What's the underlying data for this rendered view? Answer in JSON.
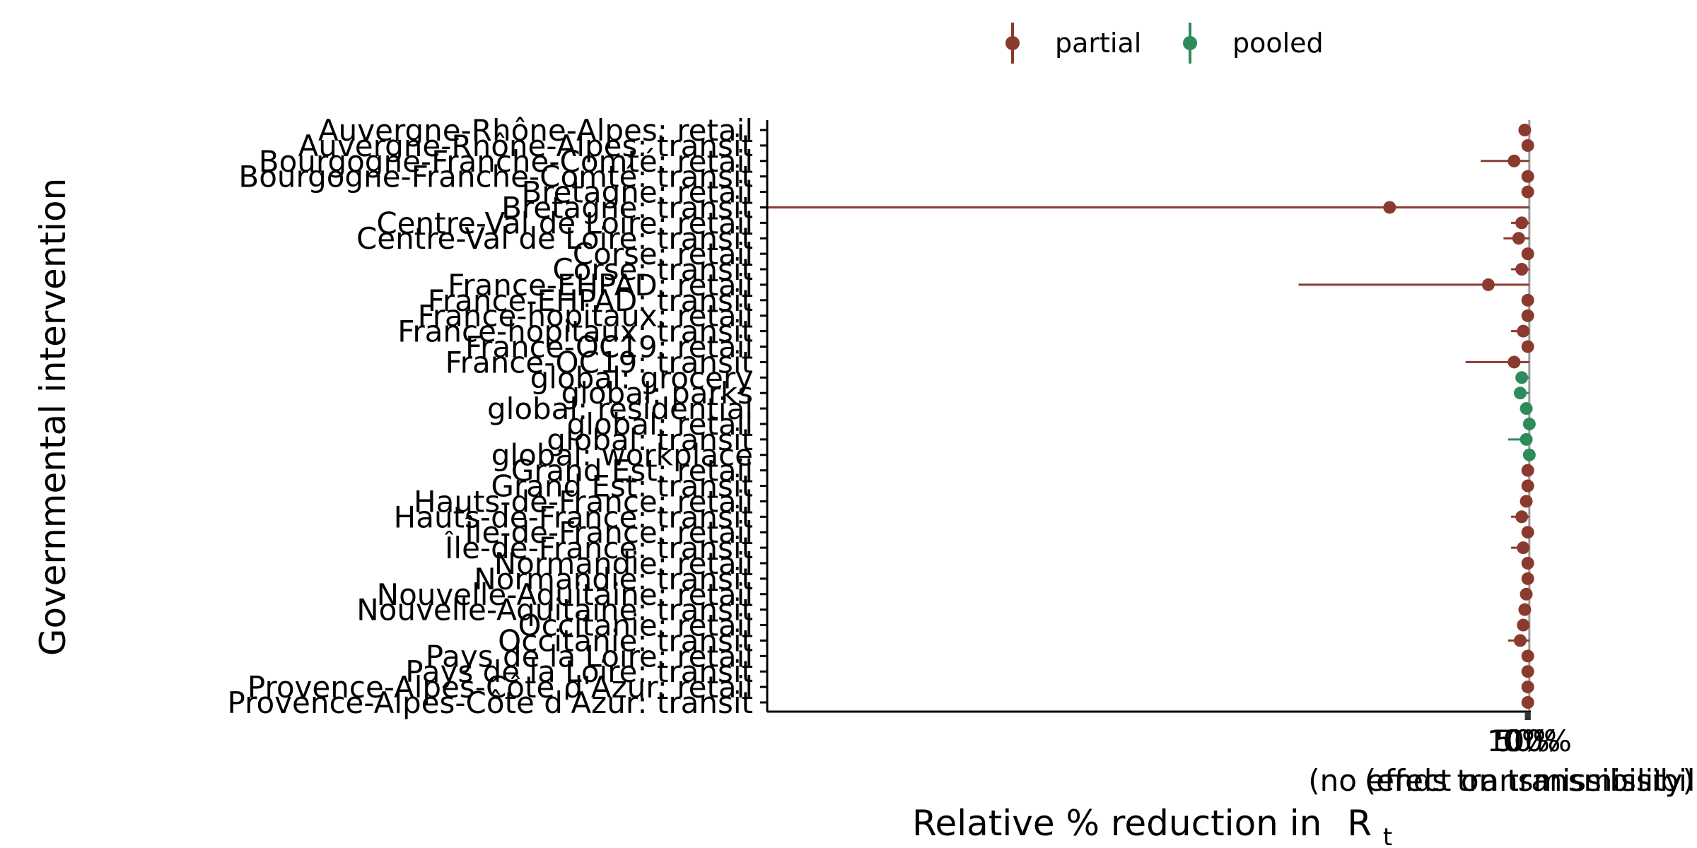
{
  "chart_data": {
    "type": "forest",
    "ylabel": "Governmental intervention",
    "xlabel": "Relative % reduction in",
    "xlabel_symbol": "R",
    "xlabel_subscript": "t",
    "xlim": [
      -500,
      3
    ],
    "x_ticks": [
      {
        "value": 0,
        "label": "0%"
      },
      {
        "value": 1,
        "label": "50%"
      },
      {
        "value": 2,
        "label": "100%"
      }
    ],
    "x_tick_notes": [
      {
        "value": 0,
        "label": "(no effect on transmissibility)"
      },
      {
        "value": 2,
        "label": "(ends transmissibility)"
      }
    ],
    "legend": {
      "placement": "top-center",
      "entries": [
        {
          "name": "partial",
          "color": "#8b3a2f"
        },
        {
          "name": "pooled",
          "color": "#2e8b5a"
        }
      ]
    },
    "reference_line": {
      "value": 2,
      "color": "#9a9a9a"
    },
    "series": [
      {
        "name": "partial",
        "color": "#8b3a2f"
      },
      {
        "name": "pooled",
        "color": "#2e8b5a"
      }
    ],
    "rows": [
      {
        "label": "Auvergne-Rhône-Alpes: retail",
        "series": "partial",
        "estimate": -1,
        "low": -4,
        "high": 2
      },
      {
        "label": "Auvergne-Rhône-Alpes: transit",
        "series": "partial",
        "estimate": 1,
        "low": -1,
        "high": 2
      },
      {
        "label": "Bourgogne-Franche-Comté: retail",
        "series": "partial",
        "estimate": -8,
        "low": -30,
        "high": 2
      },
      {
        "label": "Bourgogne-Franche-Comté: transit",
        "series": "partial",
        "estimate": 1,
        "low": -1,
        "high": 2
      },
      {
        "label": "Bretagne: retail",
        "series": "partial",
        "estimate": 1,
        "low": -1,
        "high": 2
      },
      {
        "label": "Bretagne: transit",
        "series": "partial",
        "estimate": -90,
        "low": -500,
        "high": 2
      },
      {
        "label": "Centre-Val de Loire: retail",
        "series": "partial",
        "estimate": -3,
        "low": -10,
        "high": 2
      },
      {
        "label": "Centre-Val de Loire: transit",
        "series": "partial",
        "estimate": -5,
        "low": -15,
        "high": 2
      },
      {
        "label": "Corse: retail",
        "series": "partial",
        "estimate": 1,
        "low": -1,
        "high": 2
      },
      {
        "label": "Corse: transit",
        "series": "partial",
        "estimate": -3,
        "low": -10,
        "high": 2
      },
      {
        "label": "France-EHPAD: retail",
        "series": "partial",
        "estimate": -25,
        "low": -150,
        "high": 2
      },
      {
        "label": "France-EHPAD: transit",
        "series": "partial",
        "estimate": 1,
        "low": -1,
        "high": 2
      },
      {
        "label": "France-hopitaux: retail",
        "series": "partial",
        "estimate": 1,
        "low": -1,
        "high": 2
      },
      {
        "label": "France-hopitaux: transit",
        "series": "partial",
        "estimate": -2,
        "low": -10,
        "high": 2
      },
      {
        "label": "France-OC19: retail",
        "series": "partial",
        "estimate": 1,
        "low": -1,
        "high": 2
      },
      {
        "label": "France-OC19: transit",
        "series": "partial",
        "estimate": -8,
        "low": -40,
        "high": 2
      },
      {
        "label": "global: grocery",
        "series": "pooled",
        "estimate": -3,
        "low": -6,
        "high": 2
      },
      {
        "label": "global: parks",
        "series": "pooled",
        "estimate": -4,
        "low": -8,
        "high": 2
      },
      {
        "label": "global: residential",
        "series": "pooled",
        "estimate": 0,
        "low": -2,
        "high": 2
      },
      {
        "label": "global: retail",
        "series": "pooled",
        "estimate": 2,
        "low": 1,
        "high": 3
      },
      {
        "label": "global: transit",
        "series": "pooled",
        "estimate": 0,
        "low": -12,
        "high": 2
      },
      {
        "label": "global: workplace",
        "series": "pooled",
        "estimate": 2,
        "low": 1,
        "high": 3
      },
      {
        "label": "Grand Est: retail",
        "series": "partial",
        "estimate": 1,
        "low": -1,
        "high": 2
      },
      {
        "label": "Grand Est: transit",
        "series": "partial",
        "estimate": 1,
        "low": -1,
        "high": 2
      },
      {
        "label": "Hauts-de-France: retail",
        "series": "partial",
        "estimate": 0,
        "low": -3,
        "high": 2
      },
      {
        "label": "Hauts-de-France: transit",
        "series": "partial",
        "estimate": -3,
        "low": -10,
        "high": 2
      },
      {
        "label": "Île-de-France: retail",
        "series": "partial",
        "estimate": 1,
        "low": -1,
        "high": 2
      },
      {
        "label": "Île-de-France: transit",
        "series": "partial",
        "estimate": -2,
        "low": -10,
        "high": 2
      },
      {
        "label": "Normandie: retail",
        "series": "partial",
        "estimate": 1,
        "low": -1,
        "high": 2
      },
      {
        "label": "Normandie: transit",
        "series": "partial",
        "estimate": 1,
        "low": -1,
        "high": 2
      },
      {
        "label": "Nouvelle-Aquitaine: retail",
        "series": "partial",
        "estimate": 0,
        "low": -2,
        "high": 2
      },
      {
        "label": "Nouvelle-Aquitaine: transit",
        "series": "partial",
        "estimate": -1,
        "low": -4,
        "high": 2
      },
      {
        "label": "Occitanie: retail",
        "series": "partial",
        "estimate": -2,
        "low": -6,
        "high": 2
      },
      {
        "label": "Occitanie: transit",
        "series": "partial",
        "estimate": -4,
        "low": -12,
        "high": 2
      },
      {
        "label": "Pays de la Loire: retail",
        "series": "partial",
        "estimate": 1,
        "low": -1,
        "high": 2
      },
      {
        "label": "Pays de la Loire: transit",
        "series": "partial",
        "estimate": 1,
        "low": -1,
        "high": 2
      },
      {
        "label": "Provence-Alpes-Côte d'Azur: retail",
        "series": "partial",
        "estimate": 1,
        "low": -1,
        "high": 2
      },
      {
        "label": "Provence-Alpes-Côte d'Azur: transit",
        "series": "partial",
        "estimate": 1,
        "low": -1,
        "high": 2
      }
    ]
  }
}
